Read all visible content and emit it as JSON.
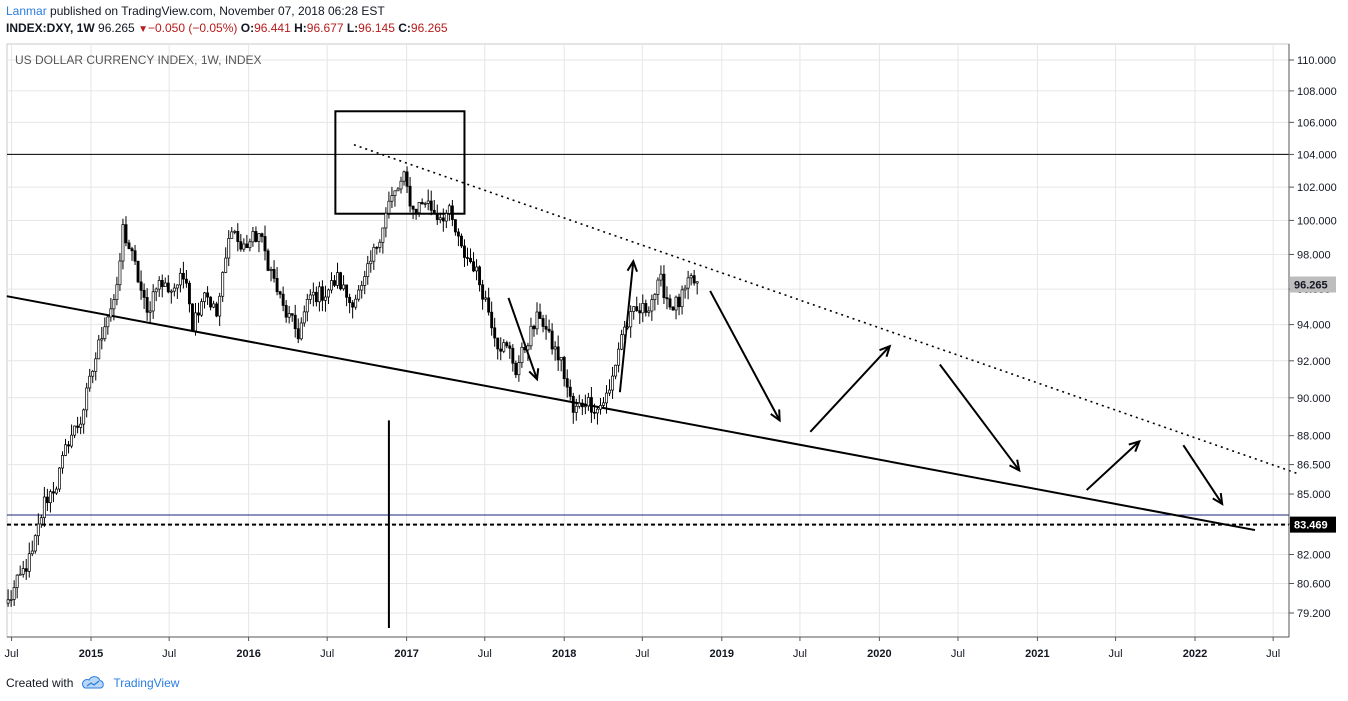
{
  "header": {
    "author": "Lanmar",
    "published_text": "published on TradingView.com, November 07, 2018 06:28 EST",
    "symbol": "INDEX:DXY, 1W",
    "last": "96.265",
    "change": "−0.050 (−0.05%)",
    "open_label": "O:",
    "open": "96.441",
    "high_label": "H:",
    "high": "96.677",
    "low_label": "L:",
    "low": "96.145",
    "close_label": "C:",
    "close": "96.265"
  },
  "footer": {
    "created_with": "Created with",
    "brand": "TradingView"
  },
  "colors": {
    "grid": "#e6e6e6",
    "candle": "#000000",
    "price_tag_bg": "#bdbdbd",
    "tag_dark": "#000000",
    "blue_line": "#1a237e"
  },
  "chart_data": {
    "type": "candlestick",
    "title": "US DOLLAR CURRENCY INDEX, 1W, INDEX",
    "y_axis": {
      "position": "right",
      "scale": "log",
      "ticks": [
        "110.000",
        "108.000",
        "106.000",
        "104.000",
        "102.000",
        "100.000",
        "98.000",
        "96.000",
        "94.000",
        "92.000",
        "90.000",
        "88.000",
        "86.500",
        "85.000",
        "83.500",
        "82.000",
        "80.600",
        "79.200"
      ],
      "tick_values": [
        110,
        108,
        106,
        104,
        102,
        100,
        98,
        96,
        94,
        92,
        90,
        88,
        86.5,
        85,
        83.5,
        82,
        80.6,
        79.2
      ]
    },
    "x_axis": {
      "ticks": [
        {
          "label": "Jul",
          "date": "2014-07-01",
          "bold": false
        },
        {
          "label": "2015",
          "date": "2015-01-01",
          "bold": true
        },
        {
          "label": "Jul",
          "date": "2015-07-01",
          "bold": false
        },
        {
          "label": "2016",
          "date": "2016-01-01",
          "bold": true
        },
        {
          "label": "Jul",
          "date": "2016-07-01",
          "bold": false
        },
        {
          "label": "2017",
          "date": "2017-01-01",
          "bold": true
        },
        {
          "label": "Jul",
          "date": "2017-07-01",
          "bold": false
        },
        {
          "label": "2018",
          "date": "2018-01-01",
          "bold": true
        },
        {
          "label": "Jul",
          "date": "2018-07-01",
          "bold": false
        },
        {
          "label": "2019",
          "date": "2019-01-01",
          "bold": true
        },
        {
          "label": "Jul",
          "date": "2019-07-01",
          "bold": false
        },
        {
          "label": "2020",
          "date": "2020-01-01",
          "bold": true
        },
        {
          "label": "Jul",
          "date": "2020-07-01",
          "bold": false
        },
        {
          "label": "2021",
          "date": "2021-01-01",
          "bold": true
        },
        {
          "label": "Jul",
          "date": "2021-07-01",
          "bold": false
        },
        {
          "label": "2022",
          "date": "2022-01-01",
          "bold": true
        },
        {
          "label": "Jul",
          "date": "2022-07-01",
          "bold": false
        }
      ]
    },
    "price_path": [
      [
        "2014-06-23",
        79.7
      ],
      [
        "2014-07-21",
        80.9
      ],
      [
        "2014-08-18",
        82.0
      ],
      [
        "2014-09-15",
        84.6
      ],
      [
        "2014-10-13",
        85.5
      ],
      [
        "2014-11-10",
        87.8
      ],
      [
        "2014-12-08",
        88.8
      ],
      [
        "2015-01-05",
        91.5
      ],
      [
        "2015-02-02",
        94.2
      ],
      [
        "2015-03-02",
        95.8
      ],
      [
        "2015-03-16",
        99.5
      ],
      [
        "2015-04-13",
        97.3
      ],
      [
        "2015-05-11",
        94.5
      ],
      [
        "2015-06-01",
        96.4
      ],
      [
        "2015-07-06",
        96.0
      ],
      [
        "2015-08-10",
        96.8
      ],
      [
        "2015-08-24",
        94.0
      ],
      [
        "2015-09-21",
        96.0
      ],
      [
        "2015-10-19",
        94.5
      ],
      [
        "2015-11-23",
        99.8
      ],
      [
        "2015-12-14",
        98.3
      ],
      [
        "2016-01-25",
        99.2
      ],
      [
        "2016-02-22",
        97.0
      ],
      [
        "2016-03-21",
        94.9
      ],
      [
        "2016-04-25",
        93.5
      ],
      [
        "2016-05-23",
        95.6
      ],
      [
        "2016-06-27",
        95.8
      ],
      [
        "2016-07-25",
        96.6
      ],
      [
        "2016-08-22",
        95.3
      ],
      [
        "2016-09-19",
        95.9
      ],
      [
        "2016-10-24",
        98.6
      ],
      [
        "2016-11-21",
        101.0
      ],
      [
        "2016-12-26",
        102.5
      ],
      [
        "2017-01-16",
        100.6
      ],
      [
        "2017-02-13",
        101.2
      ],
      [
        "2017-03-13",
        100.3
      ],
      [
        "2017-04-10",
        100.4
      ],
      [
        "2017-05-08",
        98.2
      ],
      [
        "2017-06-05",
        97.4
      ],
      [
        "2017-07-03",
        95.4
      ],
      [
        "2017-07-31",
        93.0
      ],
      [
        "2017-08-28",
        92.5
      ],
      [
        "2017-09-11",
        91.5
      ],
      [
        "2017-10-09",
        93.2
      ],
      [
        "2017-11-06",
        94.6
      ],
      [
        "2017-11-27",
        93.2
      ],
      [
        "2017-12-25",
        91.9
      ],
      [
        "2018-01-22",
        89.2
      ],
      [
        "2018-02-19",
        89.9
      ],
      [
        "2018-03-19",
        89.4
      ],
      [
        "2018-04-16",
        90.3
      ],
      [
        "2018-05-14",
        93.5
      ],
      [
        "2018-06-11",
        94.6
      ],
      [
        "2018-07-09",
        94.9
      ],
      [
        "2018-08-13",
        96.4
      ],
      [
        "2018-09-03",
        95.1
      ],
      [
        "2018-09-24",
        95.2
      ],
      [
        "2018-10-22",
        96.5
      ],
      [
        "2018-11-05",
        96.265
      ]
    ],
    "current_price": {
      "label": "96.265",
      "value": 96.265
    },
    "support_tag": {
      "label": "83.469",
      "value": 83.469
    },
    "horizontal_lines": [
      {
        "value": 104.0,
        "style": "solid",
        "color": "black"
      },
      {
        "value": 83.469,
        "style": "dashed",
        "color": "black"
      },
      {
        "value": 83.95,
        "style": "solid",
        "color": "navy"
      }
    ],
    "trend_lines": [
      {
        "style": "solid",
        "from": [
          "2014-06-20",
          95.6
        ],
        "to": [
          "2022-05-20",
          83.2
        ]
      },
      {
        "style": "dotted",
        "from": [
          "2016-09-01",
          104.6
        ],
        "to": [
          "2022-09-01",
          86.0
        ]
      }
    ],
    "rectangle": {
      "from": [
        "2016-07-20",
        106.7
      ],
      "to": [
        "2017-05-15",
        100.4
      ]
    },
    "vertical_line": {
      "date": "2016-11-21",
      "from": 88.8,
      "to": 78.5
    },
    "arrows": [
      {
        "from": [
          "2017-08-25",
          95.5
        ],
        "to": [
          "2017-10-30",
          91.0
        ]
      },
      {
        "from": [
          "2018-05-10",
          90.3
        ],
        "to": [
          "2018-06-10",
          97.6
        ]
      },
      {
        "from": [
          "2018-12-05",
          95.9
        ],
        "to": [
          "2019-05-15",
          88.8
        ]
      },
      {
        "from": [
          "2019-07-25",
          88.2
        ],
        "to": [
          "2020-01-25",
          92.8
        ]
      },
      {
        "from": [
          "2020-05-20",
          91.8
        ],
        "to": [
          "2020-11-20",
          86.2
        ]
      },
      {
        "from": [
          "2021-04-25",
          85.2
        ],
        "to": [
          "2021-08-25",
          87.7
        ]
      },
      {
        "from": [
          "2021-12-05",
          87.5
        ],
        "to": [
          "2022-03-05",
          84.5
        ]
      }
    ],
    "grid": true,
    "legend": "none"
  }
}
